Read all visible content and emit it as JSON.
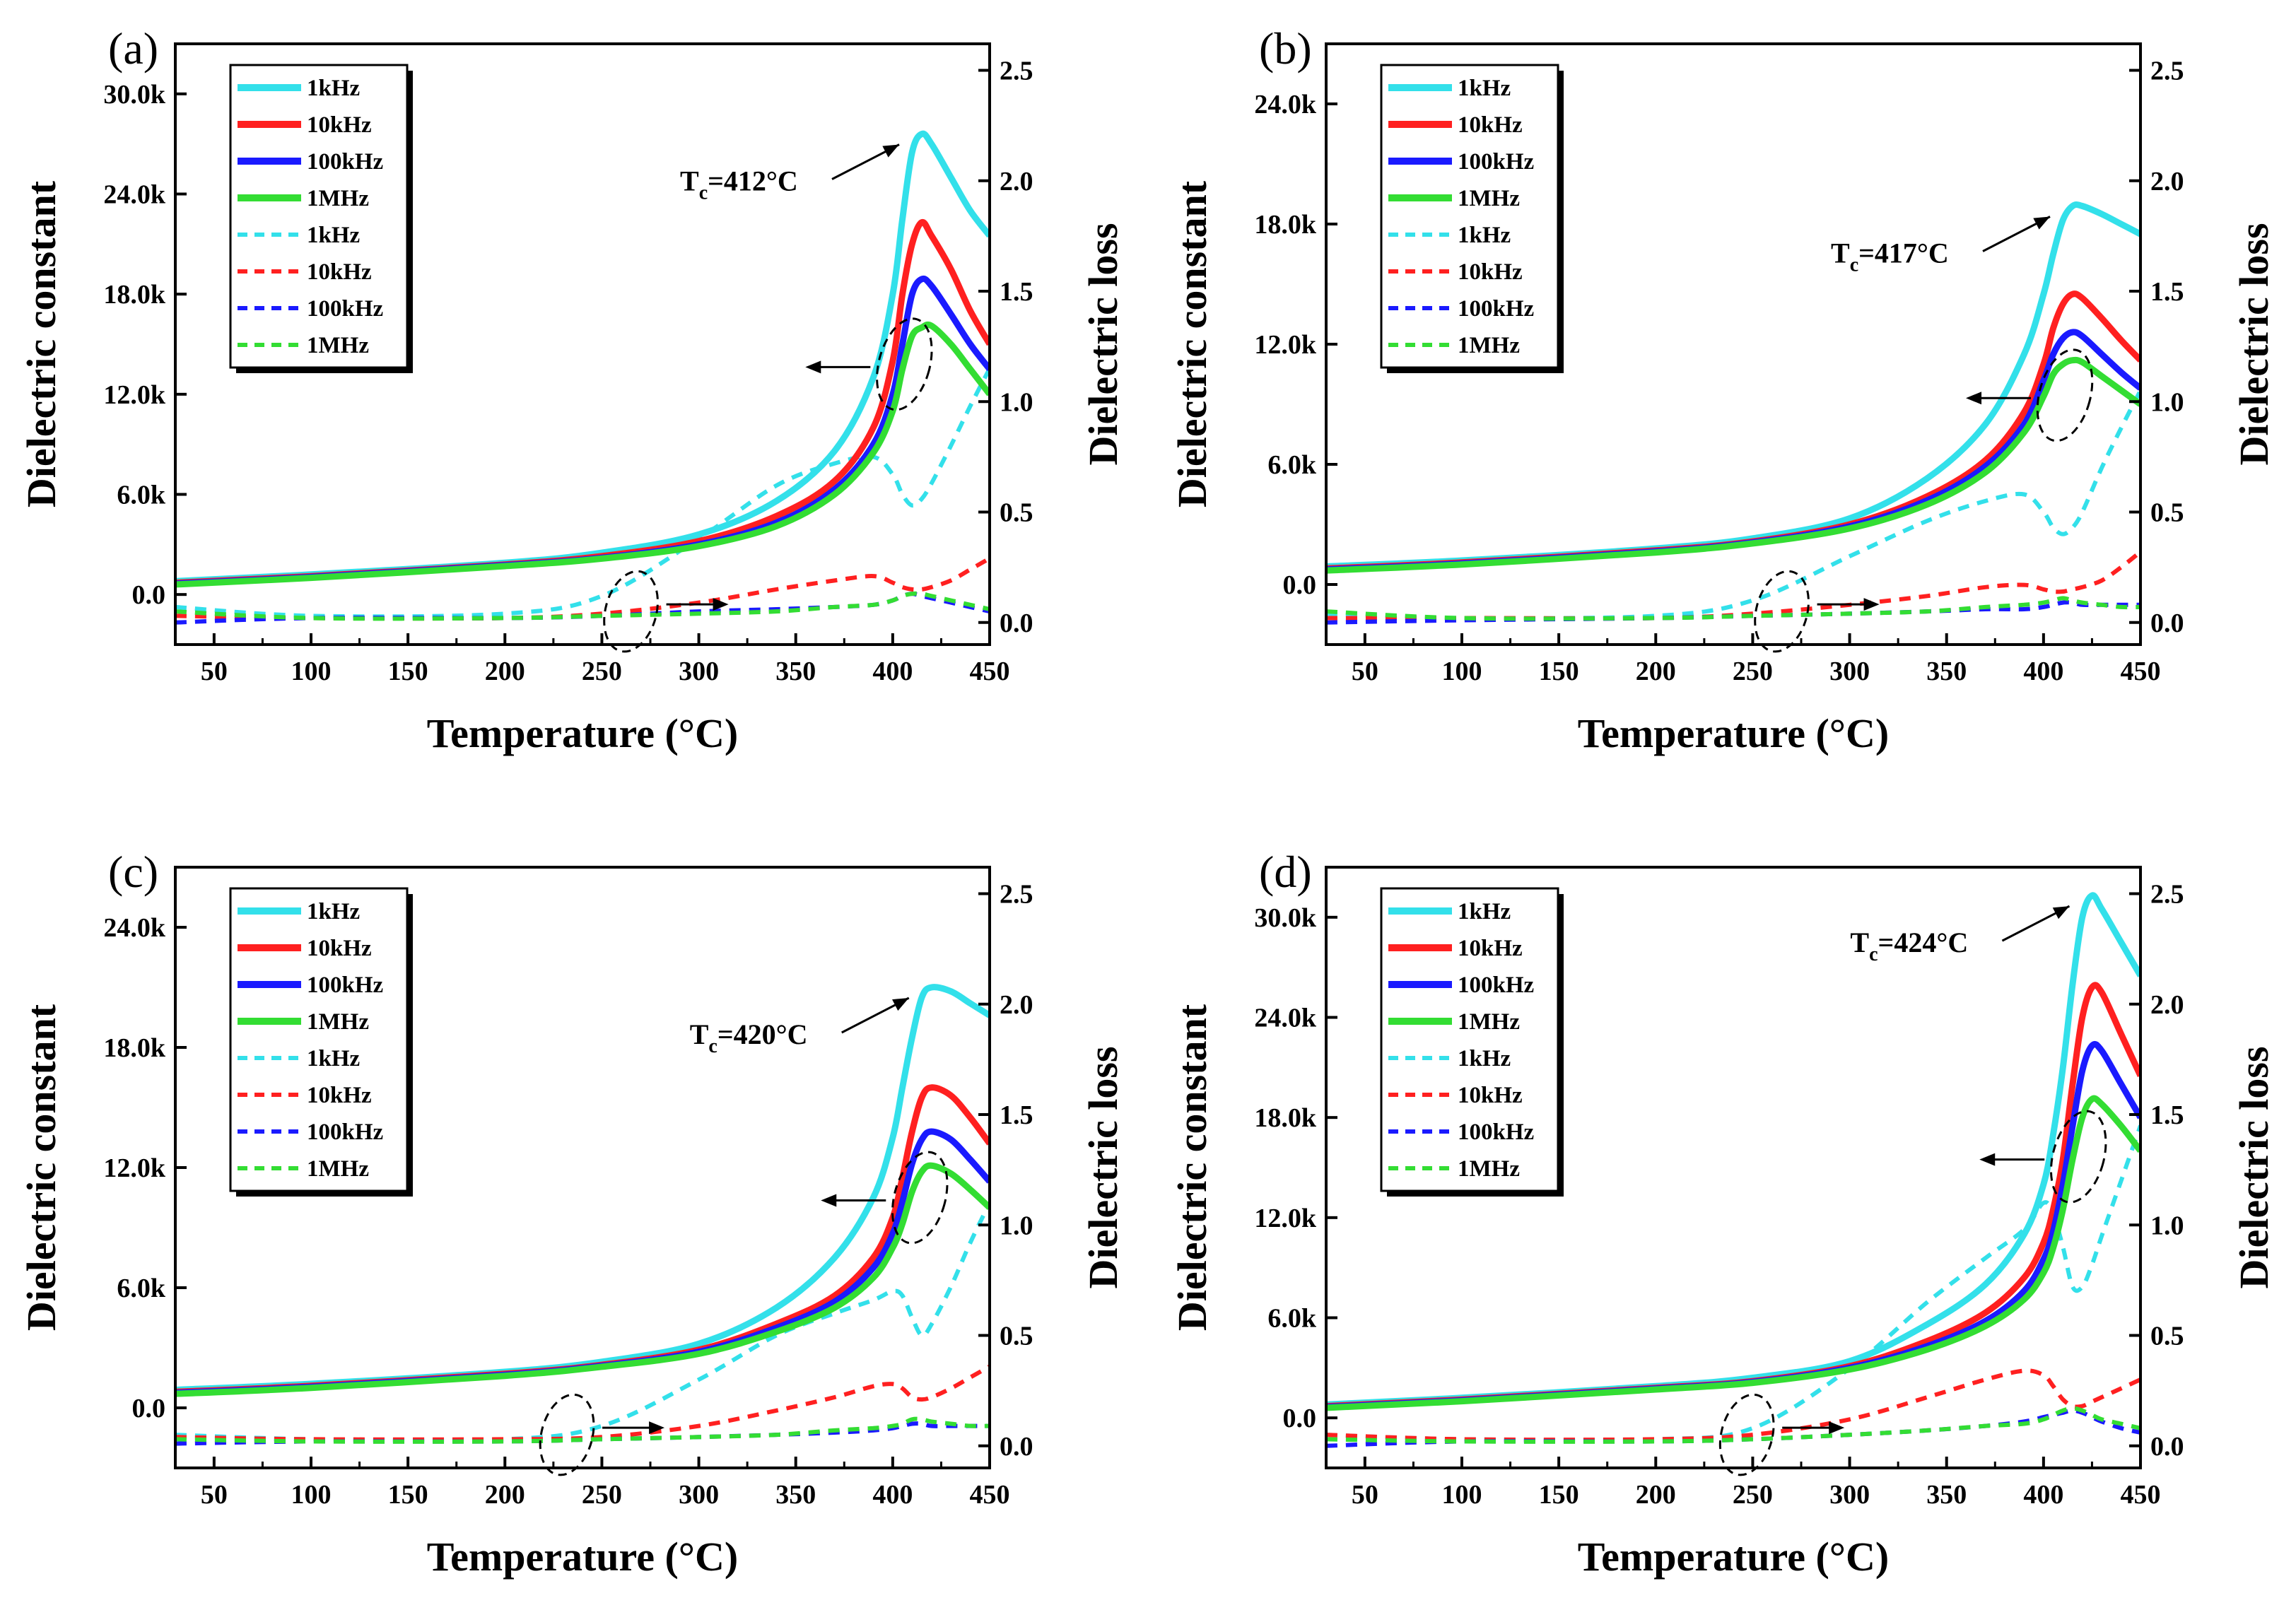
{
  "chart_data": [
    {
      "panel": "(a)",
      "type": "line",
      "xlabel": "Temperature (°C)",
      "ylabel_left": "Dielectric constant",
      "ylabel_right": "Dielectric loss",
      "xlim": [
        30,
        450
      ],
      "ylim_left": [
        -3000,
        33000
      ],
      "ylim_right": [
        -0.1,
        2.62
      ],
      "x_ticks": [
        50,
        100,
        150,
        200,
        250,
        300,
        350,
        400,
        450
      ],
      "y_left_ticks": [
        0,
        6000,
        12000,
        18000,
        24000,
        30000
      ],
      "y_left_tick_labels": [
        "0.0",
        "6.0k",
        "12.0k",
        "18.0k",
        "24.0k",
        "30.0k"
      ],
      "y_right_ticks": [
        0.0,
        0.5,
        1.0,
        1.5,
        2.0,
        2.5
      ],
      "y_right_tick_labels": [
        "0.0",
        "0.5",
        "1.0",
        "1.5",
        "2.0",
        "2.5"
      ],
      "annotation": "Tc=412°C",
      "annotation_sub": "c",
      "tc": 412,
      "legend": [
        "1kHz",
        "10kHz",
        "100kHz",
        "1MHz",
        "1kHz",
        "10kHz",
        "100kHz",
        "1MHz"
      ],
      "colors": [
        "#33e0ea",
        "#ff2020",
        "#1a1aff",
        "#33dd33"
      ],
      "x": [
        30,
        100,
        200,
        250,
        300,
        340,
        370,
        390,
        400,
        405,
        410,
        415,
        420,
        430,
        440,
        450
      ],
      "constant_series": [
        {
          "name": "1kHz",
          "values": [
            800,
            1200,
            1900,
            2500,
            3600,
            5600,
            8600,
            13000,
            18000,
            22500,
            26500,
            27600,
            27000,
            25000,
            23000,
            21500
          ]
        },
        {
          "name": "10kHz",
          "values": [
            700,
            1100,
            1800,
            2300,
            3200,
            4700,
            6800,
            10000,
            14000,
            18000,
            21000,
            22300,
            21500,
            19500,
            17000,
            15000
          ]
        },
        {
          "name": "100kHz",
          "values": [
            650,
            1050,
            1750,
            2200,
            3000,
            4300,
            6300,
            9000,
            12000,
            15000,
            18000,
            18900,
            18500,
            16800,
            15000,
            13500
          ]
        },
        {
          "name": "1MHz",
          "values": [
            600,
            1000,
            1700,
            2150,
            2900,
            4100,
            6000,
            8500,
            11000,
            13500,
            15500,
            16000,
            16100,
            15000,
            13500,
            12000
          ]
        }
      ],
      "loss_series": [
        {
          "name": "1kHz",
          "values": [
            0.07,
            0.03,
            0.04,
            0.12,
            0.38,
            0.62,
            0.72,
            0.75,
            0.67,
            0.58,
            0.53,
            0.56,
            0.63,
            0.8,
            0.98,
            1.15
          ]
        },
        {
          "name": "10kHz",
          "values": [
            0.03,
            0.02,
            0.02,
            0.04,
            0.09,
            0.15,
            0.19,
            0.21,
            0.18,
            0.16,
            0.15,
            0.15,
            0.16,
            0.19,
            0.24,
            0.29
          ]
        },
        {
          "name": "100kHz",
          "values": [
            0.0,
            0.02,
            0.02,
            0.03,
            0.05,
            0.06,
            0.07,
            0.08,
            0.1,
            0.12,
            0.13,
            0.12,
            0.11,
            0.09,
            0.07,
            0.05
          ]
        },
        {
          "name": "1MHz",
          "values": [
            0.05,
            0.02,
            0.02,
            0.03,
            0.04,
            0.05,
            0.07,
            0.08,
            0.1,
            0.12,
            0.13,
            0.13,
            0.12,
            0.1,
            0.08,
            0.06
          ]
        }
      ]
    },
    {
      "panel": "(b)",
      "type": "line",
      "xlabel": "Temperature (°C)",
      "ylabel_left": "Dielectric constant",
      "ylabel_right": "Dielectric loss",
      "xlim": [
        30,
        450
      ],
      "ylim_left": [
        -3000,
        27000
      ],
      "ylim_right": [
        -0.1,
        2.62
      ],
      "x_ticks": [
        50,
        100,
        150,
        200,
        250,
        300,
        350,
        400,
        450
      ],
      "y_left_ticks": [
        0,
        6000,
        12000,
        18000,
        24000
      ],
      "y_left_tick_labels": [
        "0.0",
        "6.0k",
        "12.0k",
        "18.0k",
        "24.0k"
      ],
      "y_right_ticks": [
        0.0,
        0.5,
        1.0,
        1.5,
        2.0,
        2.5
      ],
      "y_right_tick_labels": [
        "0.0",
        "0.5",
        "1.0",
        "1.5",
        "2.0",
        "2.5"
      ],
      "annotation": "Tc=417°C",
      "annotation_sub": "c",
      "tc": 417,
      "legend": [
        "1kHz",
        "10kHz",
        "100kHz",
        "1MHz",
        "1kHz",
        "10kHz",
        "100kHz",
        "1MHz"
      ],
      "colors": [
        "#33e0ea",
        "#ff2020",
        "#1a1aff",
        "#33dd33"
      ],
      "x": [
        30,
        100,
        200,
        250,
        300,
        340,
        370,
        390,
        400,
        405,
        410,
        415,
        420,
        430,
        440,
        450
      ],
      "constant_series": [
        {
          "name": "1kHz",
          "values": [
            900,
            1200,
            1800,
            2300,
            3300,
            5300,
            8000,
            11500,
            14500,
            16500,
            18200,
            18900,
            18900,
            18500,
            18000,
            17500
          ]
        },
        {
          "name": "10kHz",
          "values": [
            800,
            1100,
            1700,
            2150,
            3000,
            4400,
            6200,
            8600,
            11000,
            12800,
            14000,
            14500,
            14300,
            13300,
            12200,
            11200
          ]
        },
        {
          "name": "100kHz",
          "values": [
            750,
            1050,
            1650,
            2100,
            2900,
            4200,
            5900,
            8000,
            10200,
            11500,
            12300,
            12600,
            12400,
            11500,
            10600,
            9800
          ]
        },
        {
          "name": "1MHz",
          "values": [
            700,
            1000,
            1600,
            2050,
            2800,
            4000,
            5600,
            7600,
            9400,
            10500,
            11000,
            11200,
            11100,
            10400,
            9700,
            9000
          ]
        }
      ],
      "loss_series": [
        {
          "name": "1kHz",
          "values": [
            0.04,
            0.02,
            0.03,
            0.1,
            0.3,
            0.46,
            0.55,
            0.58,
            0.5,
            0.43,
            0.4,
            0.43,
            0.5,
            0.7,
            0.88,
            1.05
          ]
        },
        {
          "name": "10kHz",
          "values": [
            0.02,
            0.02,
            0.02,
            0.04,
            0.08,
            0.12,
            0.16,
            0.17,
            0.15,
            0.14,
            0.14,
            0.15,
            0.16,
            0.19,
            0.25,
            0.32
          ]
        },
        {
          "name": "100kHz",
          "values": [
            0.0,
            0.01,
            0.02,
            0.03,
            0.04,
            0.05,
            0.06,
            0.06,
            0.07,
            0.08,
            0.09,
            0.09,
            0.08,
            0.08,
            0.08,
            0.08
          ]
        },
        {
          "name": "1MHz",
          "values": [
            0.05,
            0.02,
            0.02,
            0.03,
            0.04,
            0.05,
            0.07,
            0.08,
            0.09,
            0.1,
            0.11,
            0.1,
            0.09,
            0.08,
            0.07,
            0.07
          ]
        }
      ]
    },
    {
      "panel": "(c)",
      "type": "line",
      "xlabel": "Temperature (°C)",
      "ylabel_left": "Dielectric constant",
      "ylabel_right": "Dielectric loss",
      "xlim": [
        30,
        450
      ],
      "ylim_left": [
        -3000,
        27000
      ],
      "ylim_right": [
        -0.1,
        2.62
      ],
      "x_ticks": [
        50,
        100,
        150,
        200,
        250,
        300,
        350,
        400,
        450
      ],
      "y_left_ticks": [
        0,
        6000,
        12000,
        18000,
        24000
      ],
      "y_left_tick_labels": [
        "0.0",
        "6.0k",
        "12.0k",
        "18.0k",
        "24.0k"
      ],
      "y_right_ticks": [
        0.0,
        0.5,
        1.0,
        1.5,
        2.0,
        2.5
      ],
      "y_right_tick_labels": [
        "0.0",
        "0.5",
        "1.0",
        "1.5",
        "2.0",
        "2.5"
      ],
      "annotation": "Tc=420°C",
      "annotation_sub": "c",
      "tc": 420,
      "legend": [
        "1kHz",
        "10kHz",
        "100kHz",
        "1MHz",
        "1kHz",
        "10kHz",
        "100kHz",
        "1MHz"
      ],
      "colors": [
        "#33e0ea",
        "#ff2020",
        "#1a1aff",
        "#33dd33"
      ],
      "x": [
        30,
        100,
        200,
        250,
        300,
        340,
        370,
        390,
        400,
        405,
        410,
        415,
        420,
        430,
        440,
        450
      ],
      "constant_series": [
        {
          "name": "1kHz",
          "values": [
            900,
            1200,
            1800,
            2300,
            3200,
            5000,
            7500,
            10500,
            13500,
            16000,
            18500,
            20500,
            21000,
            20800,
            20200,
            19600
          ]
        },
        {
          "name": "10kHz",
          "values": [
            800,
            1100,
            1700,
            2150,
            2900,
            4200,
            5600,
            7500,
            9500,
            11500,
            13800,
            15500,
            16000,
            15600,
            14500,
            13200
          ]
        },
        {
          "name": "100kHz",
          "values": [
            750,
            1050,
            1650,
            2100,
            2800,
            4000,
            5300,
            7000,
            8700,
            10300,
            12200,
            13400,
            13800,
            13400,
            12400,
            11300
          ]
        },
        {
          "name": "1MHz",
          "values": [
            700,
            1000,
            1600,
            2050,
            2700,
            3800,
            5000,
            6500,
            8000,
            9200,
            10800,
            11800,
            12100,
            11700,
            10900,
            10000
          ]
        }
      ],
      "loss_series": [
        {
          "name": "1kHz",
          "values": [
            0.05,
            0.03,
            0.03,
            0.09,
            0.3,
            0.5,
            0.6,
            0.66,
            0.7,
            0.68,
            0.58,
            0.5,
            0.55,
            0.72,
            0.92,
            1.1
          ]
        },
        {
          "name": "10kHz",
          "values": [
            0.04,
            0.03,
            0.03,
            0.04,
            0.09,
            0.16,
            0.22,
            0.27,
            0.28,
            0.26,
            0.22,
            0.21,
            0.22,
            0.26,
            0.31,
            0.36
          ]
        },
        {
          "name": "100kHz",
          "values": [
            0.01,
            0.02,
            0.02,
            0.03,
            0.04,
            0.05,
            0.06,
            0.07,
            0.08,
            0.09,
            0.1,
            0.1,
            0.09,
            0.09,
            0.09,
            0.09
          ]
        },
        {
          "name": "1MHz",
          "values": [
            0.03,
            0.02,
            0.02,
            0.03,
            0.04,
            0.05,
            0.07,
            0.08,
            0.09,
            0.1,
            0.12,
            0.12,
            0.11,
            0.1,
            0.09,
            0.09
          ]
        }
      ]
    },
    {
      "panel": "(d)",
      "type": "line",
      "xlabel": "Temperature (°C)",
      "ylabel_left": "Dielectric constant",
      "ylabel_right": "Dielectric loss",
      "xlim": [
        30,
        450
      ],
      "ylim_left": [
        -3000,
        33000
      ],
      "ylim_right": [
        -0.1,
        2.62
      ],
      "x_ticks": [
        50,
        100,
        150,
        200,
        250,
        300,
        350,
        400,
        450
      ],
      "y_left_ticks": [
        0,
        6000,
        12000,
        18000,
        24000,
        30000
      ],
      "y_left_tick_labels": [
        "0.0",
        "6.0k",
        "12.0k",
        "18.0k",
        "24.0k",
        "30.0k"
      ],
      "y_right_ticks": [
        0.0,
        0.5,
        1.0,
        1.5,
        2.0,
        2.5
      ],
      "y_right_tick_labels": [
        "0.0",
        "0.5",
        "1.0",
        "1.5",
        "2.0",
        "2.5"
      ],
      "annotation": "Tc=424°C",
      "annotation_sub": "c",
      "tc": 424,
      "legend": [
        "1kHz",
        "10kHz",
        "100kHz",
        "1MHz",
        "1kHz",
        "10kHz",
        "100kHz",
        "1MHz"
      ],
      "colors": [
        "#33e0ea",
        "#ff2020",
        "#1a1aff",
        "#33dd33"
      ],
      "x": [
        30,
        100,
        200,
        250,
        300,
        340,
        370,
        390,
        400,
        405,
        410,
        415,
        420,
        425,
        430,
        440,
        450
      ],
      "constant_series": [
        {
          "name": "1kHz",
          "values": [
            800,
            1200,
            1900,
            2400,
            3400,
            5600,
            8000,
            11000,
            14000,
            17000,
            21000,
            26000,
            30000,
            31300,
            30500,
            28500,
            26500
          ]
        },
        {
          "name": "10kHz",
          "values": [
            700,
            1100,
            1800,
            2200,
            3100,
            4600,
            6300,
            8400,
            10500,
            12500,
            15500,
            20000,
            24000,
            25800,
            25500,
            23000,
            20500
          ]
        },
        {
          "name": "100kHz",
          "values": [
            650,
            1050,
            1750,
            2150,
            3000,
            4300,
            5800,
            7600,
            9500,
            11200,
            14000,
            17500,
            20800,
            22300,
            22000,
            20000,
            18000
          ]
        },
        {
          "name": "1MHz",
          "values": [
            600,
            1000,
            1700,
            2100,
            2900,
            4100,
            5500,
            7100,
            8700,
            10200,
            12500,
            15500,
            18000,
            19100,
            18800,
            17500,
            16000
          ]
        }
      ],
      "loss_series": [
        {
          "name": "1kHz",
          "values": [
            0.05,
            0.03,
            0.03,
            0.08,
            0.35,
            0.65,
            0.85,
            0.98,
            1.1,
            1.05,
            0.9,
            0.72,
            0.72,
            0.82,
            0.95,
            1.2,
            1.45
          ]
        },
        {
          "name": "10kHz",
          "values": [
            0.05,
            0.03,
            0.03,
            0.05,
            0.12,
            0.22,
            0.3,
            0.34,
            0.32,
            0.27,
            0.21,
            0.18,
            0.18,
            0.2,
            0.22,
            0.26,
            0.3
          ]
        },
        {
          "name": "100kHz",
          "values": [
            0.0,
            0.02,
            0.02,
            0.03,
            0.05,
            0.07,
            0.09,
            0.11,
            0.13,
            0.14,
            0.15,
            0.16,
            0.15,
            0.13,
            0.11,
            0.08,
            0.06
          ]
        },
        {
          "name": "1MHz",
          "values": [
            0.03,
            0.02,
            0.02,
            0.03,
            0.05,
            0.07,
            0.09,
            0.1,
            0.12,
            0.14,
            0.16,
            0.17,
            0.16,
            0.14,
            0.12,
            0.1,
            0.08
          ]
        }
      ]
    }
  ]
}
